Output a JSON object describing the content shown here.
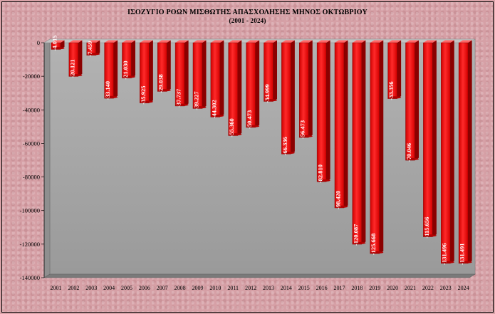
{
  "chart_data": {
    "type": "bar",
    "title": "ΙΣΟΖΥΓΙΟ ΡΟΩΝ ΜΙΣΘΩΤΗΣ ΑΠΑΣΧΟΛΗΣΗΣ ΜΗΝΟΣ  ΟΚΤΩΒΡΙΟΥ",
    "subtitle": "(2001 - 2024)",
    "categories": [
      "2001",
      "2002",
      "2003",
      "2004",
      "2005",
      "2006",
      "2007",
      "2008",
      "2009",
      "2010",
      "2011",
      "2012",
      "2013",
      "2014",
      "2015",
      "2016",
      "2017",
      "2018",
      "2019",
      "2020",
      "2021",
      "2022",
      "2023",
      "2024"
    ],
    "values": [
      -4015,
      -20121,
      -7459,
      -33140,
      -21030,
      -35925,
      -29038,
      -37737,
      -39227,
      -44302,
      -55360,
      -50473,
      -34999,
      -66336,
      -56473,
      -82810,
      -98420,
      -120087,
      -125668,
      -33356,
      -70046,
      -115656,
      -131496,
      -131491
    ],
    "data_labels": [
      "-4.015",
      "-20.121",
      "-7.459",
      "-33.140",
      "-21.030",
      "-35.925",
      "-29.038",
      "-37.737",
      "-39.227",
      "-44.302",
      "-55.360",
      "-50.473",
      "-34.999",
      "-66.336",
      "-56.473",
      "-82.810",
      "-98.420",
      "-120.087",
      "-125.668",
      "-33.356",
      "-70.046",
      "-115.656",
      "-131.496",
      "-131.491"
    ],
    "y_ticks": [
      0,
      -20000,
      -40000,
      -60000,
      -80000,
      -100000,
      -120000,
      -140000
    ],
    "y_tick_labels": [
      "0",
      "-20000",
      "-40000",
      "-60000",
      "-80000",
      "-100000",
      "-120000",
      "-140000"
    ],
    "ylim": [
      -140000,
      0
    ],
    "grid": false,
    "bar_color": "#ff1a1a",
    "plot_background": "#a6a6a6"
  }
}
